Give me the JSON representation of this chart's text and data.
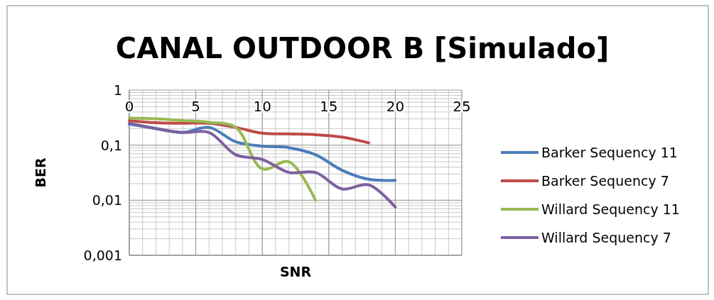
{
  "chart_data": {
    "type": "line",
    "title": "CANAL OUTDOOR B [Simulado]",
    "xlabel": "SNR",
    "ylabel": "BER",
    "log": "y",
    "grid": true,
    "legend": "right",
    "line_style": "solid",
    "xlim": [
      0,
      25
    ],
    "xticks": [
      0,
      5,
      10,
      15,
      20,
      25
    ],
    "ylim": [
      0.001,
      1
    ],
    "yticks": [
      {
        "value": 0.001,
        "label": "0,001"
      },
      {
        "value": 0.01,
        "label": "0,01"
      },
      {
        "value": 0.1,
        "label": "0,1"
      },
      1
    ],
    "series": [
      {
        "name": "Barker Sequency 11",
        "color": "#4a7ebb",
        "x": [
          0,
          2,
          4,
          6,
          8,
          10,
          12,
          14,
          16,
          18,
          20
        ],
        "values": [
          0.24,
          0.2,
          0.17,
          0.21,
          0.115,
          0.096,
          0.09,
          0.067,
          0.035,
          0.024,
          0.023
        ]
      },
      {
        "name": "Barker Sequency 7",
        "color": "#be4b48",
        "x": [
          0,
          2,
          4,
          6,
          8,
          10,
          12,
          14,
          16,
          18
        ],
        "values": [
          0.28,
          0.255,
          0.25,
          0.25,
          0.21,
          0.165,
          0.16,
          0.155,
          0.14,
          0.11
        ]
      },
      {
        "name": "Willard Sequency 11",
        "color": "#98b954",
        "x": [
          0,
          2,
          4,
          6,
          8,
          10,
          12,
          14
        ],
        "values": [
          0.31,
          0.3,
          0.28,
          0.26,
          0.21,
          0.037,
          0.05,
          0.01
        ]
      },
      {
        "name": "Willard Sequency 7",
        "color": "#7d60a0",
        "x": [
          0,
          2,
          4,
          6,
          8,
          10,
          12,
          14,
          16,
          18,
          20
        ],
        "values": [
          0.25,
          0.2,
          0.17,
          0.17,
          0.067,
          0.055,
          0.032,
          0.032,
          0.016,
          0.019,
          0.0075
        ]
      }
    ]
  }
}
